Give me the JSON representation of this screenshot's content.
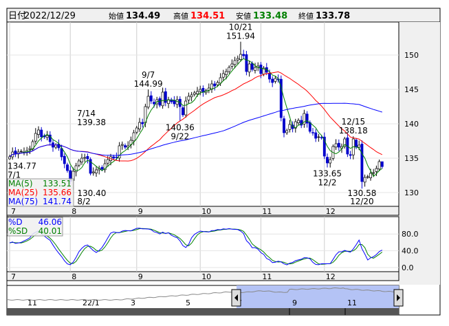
{
  "header": {
    "date_label": "日付",
    "date": "2022/12/29",
    "open_label": "始値",
    "open": "134.49",
    "high_label": "高値",
    "high": "134.51",
    "low_label": "安値",
    "low": "133.48",
    "close_label": "終値",
    "close": "133.78"
  },
  "colors": {
    "up_candle": "#ffffff",
    "down_candle": "#0000cc",
    "ma5": "#008000",
    "ma25": "#ff0000",
    "ma75": "#0000ff",
    "d": "#0000ff",
    "sd": "#008000",
    "high_text": "#ff0000",
    "low_text": "#008000",
    "navigator_fill": "#b4c3f5"
  },
  "legend": {
    "ma5": {
      "label": "MA(5)",
      "value": "133.51"
    },
    "ma25": {
      "label": "MA(25)",
      "value": "135.66"
    },
    "ma75": {
      "label": "MA(75)",
      "value": "141.74"
    },
    "d": {
      "label": "%D",
      "value": "46.06"
    },
    "sd": {
      "label": "%SD",
      "value": "40.01"
    }
  },
  "chart_data": [
    {
      "type": "candlestick",
      "start_date": "2022-07-01",
      "end_date": "2022-12-29",
      "ylim": [
        127,
        154
      ],
      "y_ticks": [
        "150",
        "145",
        "140",
        "135",
        "130"
      ],
      "x_ticks": [
        "7",
        "8",
        "9",
        "10",
        "11",
        "12"
      ],
      "closes_by_month": {
        "7": [
          135.2,
          135.9,
          135.7,
          135.9,
          136.0,
          135.9,
          136.1,
          136.4,
          137.4,
          138.6,
          139.1,
          138.1,
          138.1,
          138.3,
          137.4,
          136.6,
          136.9,
          136.5,
          135.2,
          134.2,
          133.2
        ],
        "8": [
          131.6,
          133.1,
          133.9,
          134.6,
          135.0,
          135.1,
          134.9,
          132.8,
          133.0,
          133.3,
          133.5,
          133.4,
          134.2,
          134.8,
          135.2,
          135.0,
          135.1,
          136.8,
          137.0,
          136.6,
          136.8,
          137.6,
          138.7
        ],
        "9": [
          139.4,
          140.2,
          140.0,
          142.5,
          144.0,
          143.3,
          142.9,
          143.5,
          142.7,
          144.6,
          143.1,
          143.5,
          143.2,
          142.9,
          143.5,
          142.5,
          141.3,
          143.3,
          144.0,
          144.2,
          144.5,
          144.7
        ],
        "10": [
          145.0,
          144.6,
          144.8,
          145.2,
          145.8,
          145.5,
          146.0,
          146.7,
          147.3,
          147.6,
          148.2,
          148.7,
          149.2,
          149.5,
          150.1,
          149.9,
          147.6,
          148.7,
          147.9,
          148.2,
          148.4
        ],
        "11": [
          147.3,
          148.1,
          147.5,
          146.5,
          146.0,
          146.6,
          146.4,
          140.9,
          138.7,
          139.0,
          139.9,
          139.3,
          140.3,
          140.5,
          139.8,
          141.5,
          140.1,
          138.9,
          138.7,
          137.9,
          138.1,
          138.0
        ],
        "12": [
          135.3,
          134.3,
          134.8,
          136.7,
          137.1,
          136.6,
          136.7,
          137.8,
          135.6,
          135.4,
          137.8,
          136.6,
          136.9,
          131.6,
          132.2,
          132.3,
          132.8,
          132.9,
          133.5,
          134.5,
          133.78
        ]
      },
      "annotations": [
        {
          "date": "7/1",
          "value": "134.77",
          "kind": "low"
        },
        {
          "date": "7/14",
          "value": "139.38",
          "kind": "high"
        },
        {
          "date": "8/2",
          "value": "130.40",
          "kind": "low"
        },
        {
          "date": "9/7",
          "value": "144.99",
          "kind": "high"
        },
        {
          "date": "9/22",
          "value": "140.36",
          "kind": "low"
        },
        {
          "date": "10/21",
          "value": "151.94",
          "kind": "high"
        },
        {
          "date": "12/2",
          "value": "133.65",
          "kind": "low"
        },
        {
          "date": "12/15",
          "value": "138.18",
          "kind": "high"
        },
        {
          "date": "12/20",
          "value": "130.58",
          "kind": "low"
        }
      ]
    },
    {
      "type": "line",
      "name": "stochastic",
      "ylim": [
        0,
        100
      ],
      "y_ticks": [
        "80.0",
        "40.0",
        "0.0"
      ],
      "x_ticks": [
        "7",
        "8",
        "9",
        "10",
        "11",
        "12"
      ]
    }
  ],
  "navigator": {
    "labels": [
      "11",
      "22/1",
      "3",
      "5",
      "7",
      "9",
      "11"
    ]
  }
}
